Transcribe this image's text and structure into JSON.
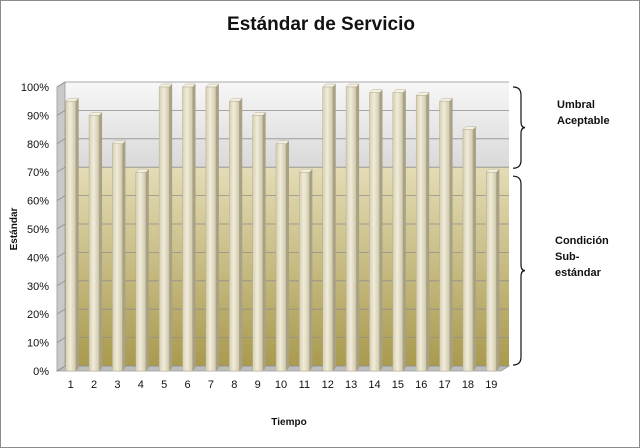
{
  "chart_data": {
    "type": "bar",
    "title": "Estándar de Servicio",
    "xlabel": "Tiempo",
    "ylabel": "Estándar",
    "categories": [
      "1",
      "2",
      "3",
      "4",
      "5",
      "6",
      "7",
      "8",
      "9",
      "10",
      "11",
      "12",
      "13",
      "14",
      "15",
      "16",
      "17",
      "18",
      "19"
    ],
    "series": [
      {
        "values": [
          95,
          90,
          80,
          70,
          100,
          100,
          100,
          95,
          90,
          80,
          70,
          100,
          100,
          98,
          98,
          97,
          95,
          85,
          70
        ]
      }
    ],
    "ylim": [
      0,
      100
    ],
    "yticks": [
      "0%",
      "10%",
      "20%",
      "30%",
      "40%",
      "50%",
      "60%",
      "70%",
      "80%",
      "90%",
      "100%"
    ],
    "grid": true,
    "bands": [
      {
        "from": 70,
        "to": 100,
        "label": "Umbral Aceptable",
        "label_lines": [
          "Umbral",
          "Aceptable"
        ]
      },
      {
        "from": 0,
        "to": 70,
        "label": "Condición Sub-estándar",
        "label_lines": [
          "Condición",
          "Sub-",
          "estándar"
        ]
      }
    ],
    "colors": {
      "bar_face": "#e6e0c8",
      "bar_side": "#a9a288",
      "upper_band": "#ececec",
      "lower_band": "#b8ac70"
    }
  }
}
